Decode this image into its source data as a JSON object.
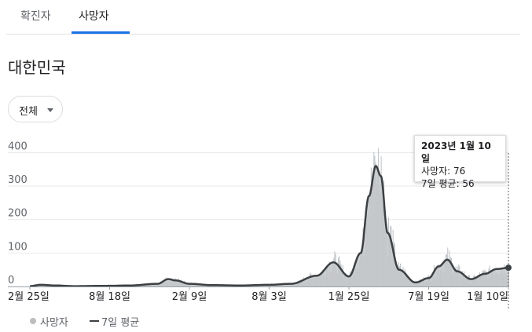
{
  "tabs": [
    {
      "label": "확진자",
      "active": false
    },
    {
      "label": "사망자",
      "active": true
    }
  ],
  "region": "대한민국",
  "filter": {
    "label": "전체"
  },
  "colors": {
    "bar": "#bdc1c6",
    "area": "#c4c7c9",
    "line": "#3c4043",
    "accent": "#1a73e8",
    "grid": "#e8eaed"
  },
  "tooltip": {
    "date": "2023년 1월 10일",
    "deaths_label": "사망자: 76",
    "avg_label": "7일 평균: 56"
  },
  "legend": {
    "deaths": "사망자",
    "avg": "7일 평균"
  },
  "chart_data": {
    "type": "bar",
    "title": "",
    "ylim": [
      0,
      450
    ],
    "y_ticks": [
      "0",
      "100",
      "200",
      "300",
      "400"
    ],
    "x_tick_labels": [
      "2월 25일",
      "8월 18일",
      "2월 9일",
      "8월 3일",
      "1월 25일",
      "7월 19일",
      "1월 10일"
    ],
    "grid": true,
    "legend_position": "bottom-left",
    "series": [
      {
        "name": "7일 평균",
        "type": "line",
        "points": [
          [
            "2020-02-25",
            1
          ],
          [
            "2020-03-20",
            5
          ],
          [
            "2020-04-20",
            3
          ],
          [
            "2020-06-01",
            1
          ],
          [
            "2020-08-18",
            2
          ],
          [
            "2020-10-01",
            3
          ],
          [
            "2020-12-01",
            8
          ],
          [
            "2020-12-25",
            22
          ],
          [
            "2021-01-10",
            18
          ],
          [
            "2021-02-09",
            8
          ],
          [
            "2021-04-01",
            4
          ],
          [
            "2021-06-01",
            3
          ],
          [
            "2021-08-03",
            5
          ],
          [
            "2021-09-20",
            8
          ],
          [
            "2021-11-15",
            32
          ],
          [
            "2021-12-22",
            72
          ],
          [
            "2022-01-25",
            30
          ],
          [
            "2022-02-20",
            100
          ],
          [
            "2022-03-10",
            270
          ],
          [
            "2022-03-25",
            360
          ],
          [
            "2022-04-05",
            330
          ],
          [
            "2022-04-20",
            160
          ],
          [
            "2022-05-15",
            50
          ],
          [
            "2022-06-20",
            12
          ],
          [
            "2022-07-19",
            25
          ],
          [
            "2022-08-10",
            60
          ],
          [
            "2022-08-29",
            80
          ],
          [
            "2022-09-20",
            45
          ],
          [
            "2022-10-20",
            22
          ],
          [
            "2022-11-20",
            38
          ],
          [
            "2022-12-15",
            52
          ],
          [
            "2023-01-10",
            56
          ]
        ]
      },
      {
        "name": "사망자",
        "type": "bar",
        "highlighted_point": {
          "date": "2023-01-10",
          "deaths": 76,
          "avg": 56
        }
      }
    ]
  }
}
